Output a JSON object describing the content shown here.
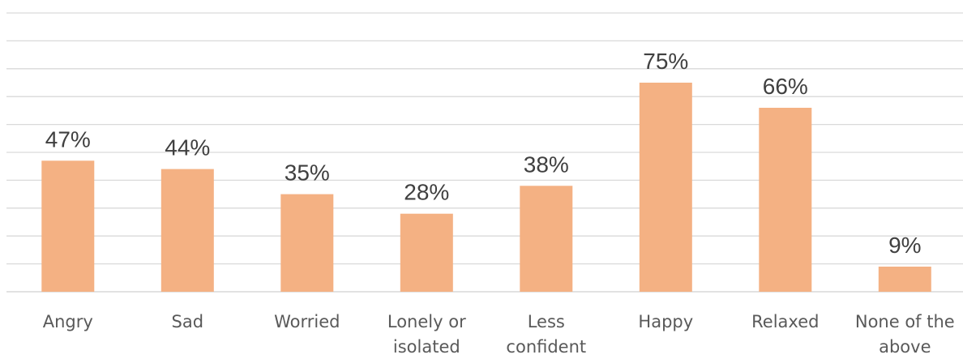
{
  "chart_data": {
    "type": "bar",
    "title": "",
    "xlabel": "",
    "ylabel": "",
    "categories": [
      "Angry",
      "Sad",
      "Worried",
      "Lonely or isolated",
      "Less confident",
      "Happy",
      "Relaxed",
      "None of the above"
    ],
    "category_lines": [
      [
        "Angry"
      ],
      [
        "Sad"
      ],
      [
        "Worried"
      ],
      [
        "Lonely or",
        "isolated"
      ],
      [
        "Less",
        "confident"
      ],
      [
        "Happy"
      ],
      [
        "Relaxed"
      ],
      [
        "None of the",
        "above"
      ]
    ],
    "values": [
      47,
      44,
      35,
      28,
      38,
      75,
      66,
      9
    ],
    "value_labels": [
      "47%",
      "44%",
      "35%",
      "28%",
      "38%",
      "75%",
      "66%",
      "9%"
    ],
    "ylim": [
      0,
      100
    ],
    "y_grid_step": 10,
    "grid": true,
    "legend": "none",
    "colors": {
      "bar": "#f4b183",
      "grid": "#d9d9d9",
      "value_text": "#404040",
      "category_text": "#595959"
    }
  }
}
